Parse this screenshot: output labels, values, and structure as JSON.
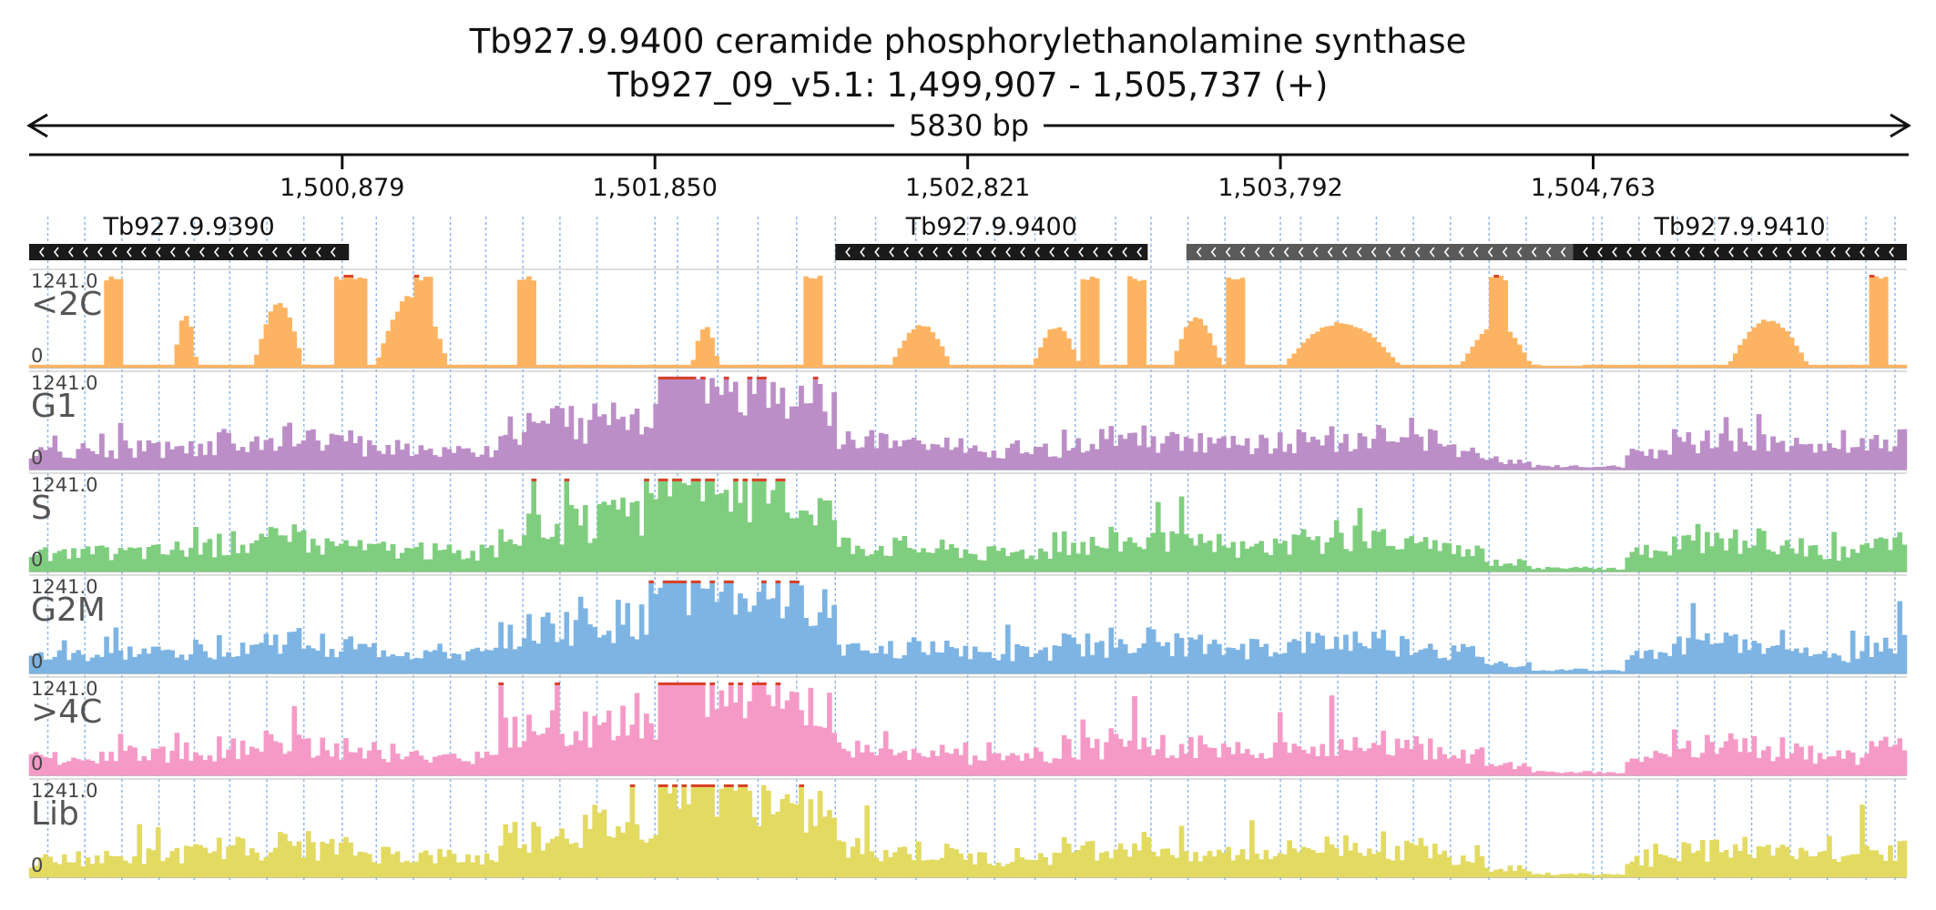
{
  "title": {
    "line1": "Tb927.9.9400  ceramide phosphorylethanolamine synthase",
    "line2": "Tb927_09_v5.1: 1,499,907 - 1,505,737 (+)",
    "length_label": "5830 bp"
  },
  "chart_data": {
    "type": "area",
    "x_range": [
      1499907,
      1505737
    ],
    "ticks": [
      {
        "pos": 1500879,
        "label": "1,500,879"
      },
      {
        "pos": 1501850,
        "label": "1,501,850"
      },
      {
        "pos": 1502821,
        "label": "1,502,821"
      },
      {
        "pos": 1503792,
        "label": "1,503,792"
      },
      {
        "pos": 1504763,
        "label": "1,504,763"
      }
    ],
    "genes": [
      {
        "name": "Tb927.9.9390",
        "start": 1499907,
        "end": 1500900,
        "strand": "-",
        "color": "#1a1a1a"
      },
      {
        "name": "Tb927.9.9400",
        "start": 1502410,
        "end": 1503380,
        "strand": "-",
        "color": "#1a1a1a"
      },
      {
        "name": "",
        "start": 1503500,
        "end": 1504700,
        "strand": "-",
        "color": "#5a5a5a"
      },
      {
        "name": "Tb927.9.9410",
        "start": 1504700,
        "end": 1505737,
        "strand": "-",
        "color": "#1a1a1a"
      }
    ],
    "y_max_label": "1241.0",
    "y_min_label": "0",
    "series": [
      {
        "name": "<2C",
        "color": "#fdb462"
      },
      {
        "name": "G1",
        "color": "#bc8ec7"
      },
      {
        "name": "S",
        "color": "#7fce7f"
      },
      {
        "name": "G2M",
        "color": "#7db4e3"
      },
      {
        "name": ">4C",
        "color": "#f59ac7"
      },
      {
        "name": "Lib",
        "color": "#e3da62"
      }
    ],
    "grid_lines": [
      1499965,
      1500080,
      1500195,
      1500310,
      1500420,
      1500530,
      1500645,
      1500760,
      1500879,
      1500985,
      1501100,
      1501215,
      1501325,
      1501440,
      1501555,
      1501670,
      1501850,
      1501920,
      1502045,
      1502170,
      1502290,
      1502410,
      1502535,
      1502660,
      1502821,
      1502905,
      1503030,
      1503155,
      1503280,
      1503390,
      1503505,
      1503620,
      1503792,
      1503855,
      1503970,
      1504090,
      1504205,
      1504320,
      1504440,
      1504555,
      1504763,
      1504790,
      1504905,
      1505025,
      1505140,
      1505255,
      1505375,
      1505490,
      1505610,
      1505700
    ]
  }
}
